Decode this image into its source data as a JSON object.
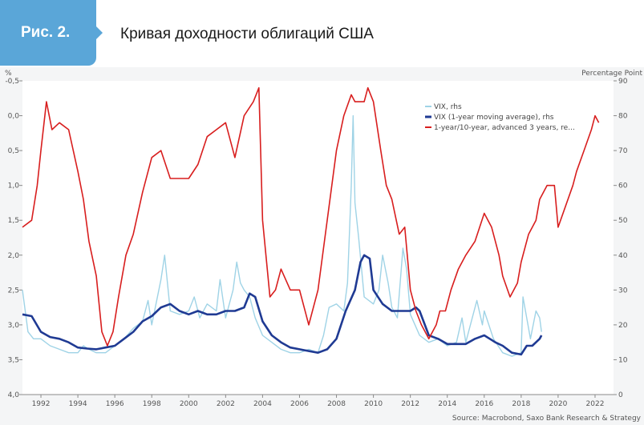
{
  "header": {
    "figure_label": "Рис. 2.",
    "title": "Кривая доходности облигаций США"
  },
  "colors": {
    "accent": "#5aa6d8",
    "vix": "#9fd3e6",
    "vix_avg": "#1f3a93",
    "spread": "#d81e1e"
  },
  "chart_data": {
    "type": "line",
    "title": "",
    "xlabel": "",
    "ylabel_left": "%",
    "ylabel_right": "Percentage Point",
    "source": "Source: Macrobond, Saxo Bank Research & Strategy",
    "xlim": [
      1991.0,
      2023.0
    ],
    "x_ticks": [
      1992,
      1994,
      1996,
      1998,
      2000,
      2002,
      2004,
      2006,
      2008,
      2010,
      2012,
      2014,
      2016,
      2018,
      2020,
      2022
    ],
    "ylim_left": [
      4.0,
      -0.5
    ],
    "y_ticks_left": [
      "-0,5",
      "0,0",
      "0,5",
      "1,0",
      "1,5",
      "2,0",
      "2,5",
      "3,0",
      "3,5",
      "4,0"
    ],
    "ylim_right": [
      0,
      90
    ],
    "y_ticks_right": [
      0,
      10,
      20,
      30,
      40,
      50,
      60,
      70,
      80,
      90
    ],
    "legend_position": "top-right",
    "series": [
      {
        "name": "VIX, rhs",
        "axis": "right",
        "x": [
          1991.0,
          1991.3,
          1991.6,
          1992.0,
          1992.5,
          1993.0,
          1993.5,
          1994.0,
          1994.3,
          1994.6,
          1995.0,
          1995.5,
          1996.0,
          1996.5,
          1997.0,
          1997.5,
          1997.8,
          1998.0,
          1998.5,
          1998.7,
          1999.0,
          1999.5,
          2000.0,
          2000.3,
          2000.6,
          2001.0,
          2001.5,
          2001.7,
          2002.0,
          2002.4,
          2002.6,
          2002.8,
          2003.0,
          2003.3,
          2003.6,
          2004.0,
          2004.5,
          2005.0,
          2005.5,
          2006.0,
          2006.5,
          2007.0,
          2007.3,
          2007.6,
          2008.0,
          2008.4,
          2008.6,
          2008.8,
          2008.9,
          2009.0,
          2009.2,
          2009.5,
          2010.0,
          2010.3,
          2010.5,
          2010.8,
          2011.0,
          2011.3,
          2011.6,
          2011.8,
          2012.0,
          2012.5,
          2013.0,
          2013.5,
          2014.0,
          2014.5,
          2014.8,
          2015.0,
          2015.6,
          2015.9,
          2016.0,
          2016.5,
          2017.0,
          2017.5,
          2018.0,
          2018.1,
          2018.5,
          2018.8,
          2019.0,
          2019.1
        ],
        "values": [
          30,
          18,
          16,
          16,
          14,
          13,
          12,
          12,
          14,
          13,
          12,
          12,
          14,
          16,
          19,
          21,
          27,
          20,
          33,
          40,
          24,
          23,
          24,
          28,
          22,
          26,
          24,
          33,
          22,
          30,
          38,
          32,
          30,
          28,
          22,
          17,
          15,
          13,
          12,
          12,
          13,
          12,
          17,
          25,
          26,
          24,
          32,
          60,
          80,
          55,
          45,
          28,
          26,
          30,
          40,
          32,
          25,
          22,
          42,
          36,
          23,
          17,
          15,
          16,
          14,
          15,
          22,
          15,
          27,
          20,
          24,
          16,
          12,
          11,
          12,
          28,
          16,
          24,
          22,
          18
        ]
      },
      {
        "name": "VIX (1-year moving average), rhs",
        "axis": "right",
        "x": [
          1991.0,
          1991.5,
          1992.0,
          1992.5,
          1993.0,
          1993.5,
          1994.0,
          1994.5,
          1995.0,
          1995.5,
          1996.0,
          1996.5,
          1997.0,
          1997.5,
          1998.0,
          1998.5,
          1999.0,
          1999.5,
          2000.0,
          2000.5,
          2001.0,
          2001.5,
          2002.0,
          2002.5,
          2003.0,
          2003.3,
          2003.6,
          2004.0,
          2004.5,
          2005.0,
          2005.5,
          2006.0,
          2006.5,
          2007.0,
          2007.5,
          2008.0,
          2008.5,
          2009.0,
          2009.3,
          2009.5,
          2009.8,
          2010.0,
          2010.5,
          2011.0,
          2011.5,
          2012.0,
          2012.3,
          2012.5,
          2013.0,
          2013.5,
          2014.0,
          2014.5,
          2015.0,
          2015.5,
          2016.0,
          2016.3,
          2016.6,
          2017.0,
          2017.5,
          2018.0,
          2018.3,
          2018.6,
          2019.0,
          2019.1
        ],
        "values": [
          23,
          22.5,
          18,
          16.5,
          16,
          15,
          13.5,
          13.2,
          13,
          13.5,
          14,
          16,
          18,
          21,
          22.5,
          25,
          26,
          24,
          23,
          24,
          23,
          23,
          24,
          24,
          25,
          29,
          28,
          21,
          17,
          15,
          13.5,
          13,
          12.5,
          12,
          13,
          16,
          24,
          30,
          38,
          40,
          39,
          30,
          26,
          24,
          24,
          24,
          25,
          24,
          17,
          16,
          14.5,
          14.5,
          14.5,
          16,
          17,
          16,
          15,
          14,
          12,
          11.5,
          14,
          14,
          16,
          17
        ]
      },
      {
        "name": "1-year/10-year, advanced 3 years, re...",
        "axis": "left",
        "x": [
          1991.0,
          1991.5,
          1991.8,
          1992.0,
          1992.3,
          1992.6,
          1993.0,
          1993.5,
          1994.0,
          1994.3,
          1994.6,
          1995.0,
          1995.3,
          1995.6,
          1995.9,
          1996.2,
          1996.6,
          1997.0,
          1997.5,
          1998.0,
          1998.5,
          1999.0,
          1999.5,
          2000.0,
          2000.5,
          2001.0,
          2001.5,
          2002.0,
          2002.5,
          2003.0,
          2003.5,
          2003.8,
          2004.0,
          2004.4,
          2004.7,
          2005.0,
          2005.5,
          2006.0,
          2006.5,
          2007.0,
          2007.5,
          2008.0,
          2008.4,
          2008.8,
          2009.0,
          2009.5,
          2009.7,
          2010.0,
          2010.4,
          2010.7,
          2011.0,
          2011.4,
          2011.7,
          2012.0,
          2012.3,
          2012.6,
          2013.0,
          2013.4,
          2013.6,
          2013.9,
          2014.2,
          2014.6,
          2015.0,
          2015.5,
          2016.0,
          2016.4,
          2016.8,
          2017.0,
          2017.4,
          2017.8,
          2018.0,
          2018.4,
          2018.8,
          2019.0,
          2019.4,
          2019.8,
          2020.0,
          2020.4,
          2020.8,
          2021.0,
          2021.4,
          2021.8,
          2022.0,
          2022.2
        ],
        "values": [
          1.6,
          1.5,
          1.0,
          0.5,
          -0.2,
          0.2,
          0.1,
          0.2,
          0.8,
          1.2,
          1.8,
          2.3,
          3.1,
          3.3,
          3.1,
          2.6,
          2.0,
          1.7,
          1.1,
          0.6,
          0.5,
          0.9,
          0.9,
          0.9,
          0.7,
          0.3,
          0.2,
          0.1,
          0.6,
          0.0,
          -0.2,
          -0.4,
          1.5,
          2.6,
          2.5,
          2.2,
          2.5,
          2.5,
          3.0,
          2.5,
          1.5,
          0.5,
          0.0,
          -0.3,
          -0.2,
          -0.2,
          -0.4,
          -0.2,
          0.5,
          1.0,
          1.2,
          1.7,
          1.6,
          2.5,
          2.8,
          3.0,
          3.2,
          3.0,
          2.8,
          2.8,
          2.5,
          2.2,
          2.0,
          1.8,
          1.4,
          1.6,
          2.0,
          2.3,
          2.6,
          2.4,
          2.1,
          1.7,
          1.5,
          1.2,
          1.0,
          1.0,
          1.6,
          1.3,
          1.0,
          0.8,
          0.5,
          0.2,
          0.0,
          0.1
        ]
      }
    ]
  }
}
